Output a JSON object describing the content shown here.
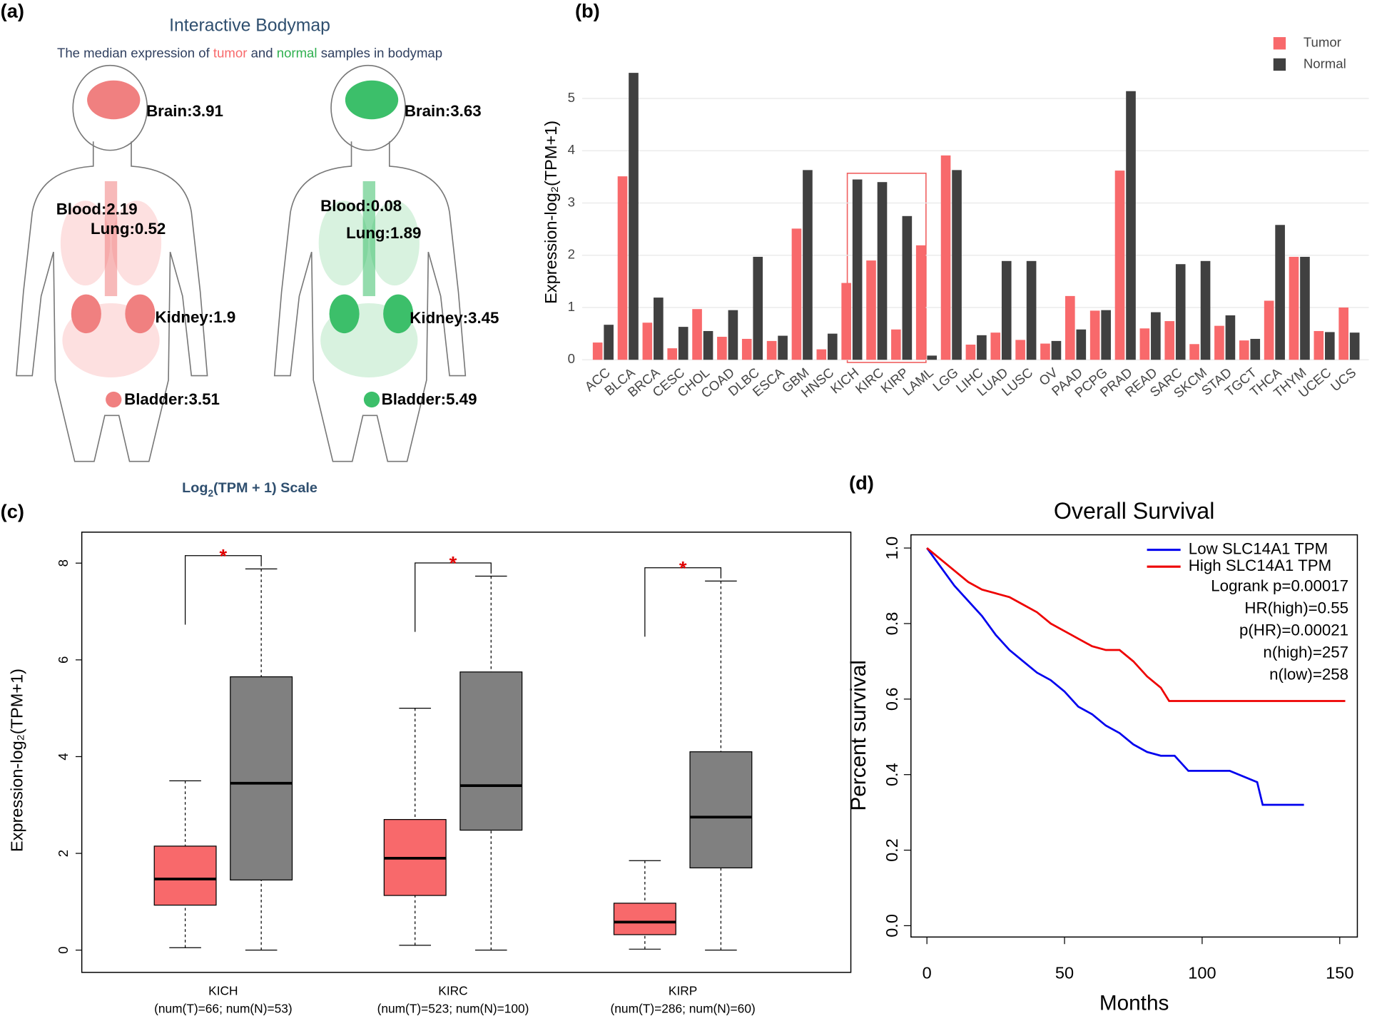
{
  "panel_labels": [
    "(a)",
    "(b)",
    "(c)",
    "(d)"
  ],
  "bodymap": {
    "title": "Interactive Bodymap",
    "subtitle": [
      "The median expression of ",
      "tumor",
      " and ",
      "normal",
      " samples in bodymap"
    ],
    "tumor_labels": [
      "Brain:3.91",
      "Blood:2.19",
      "Lung:0.52",
      "Kidney:1.9",
      "Bladder:3.51"
    ],
    "normal_labels": [
      "Brain:3.63",
      "Blood:0.08",
      "Lung:1.89",
      "Kidney:3.45",
      "Bladder:5.49"
    ],
    "scale_label": [
      "Log",
      "2",
      "(TPM + 1) Scale"
    ]
  },
  "chart_data": [
    {
      "type": "bar",
      "categories": [
        "ACC",
        "BLCA",
        "BRCA",
        "CESC",
        "CHOL",
        "COAD",
        "DLBC",
        "ESCA",
        "GBM",
        "HNSC",
        "KICH",
        "KIRC",
        "KIRP",
        "LAML",
        "LGG",
        "LIHC",
        "LUAD",
        "LUSC",
        "OV",
        "PAAD",
        "PCPG",
        "PRAD",
        "READ",
        "SARC",
        "SKCM",
        "STAD",
        "TGCT",
        "THCA",
        "THYM",
        "UCEC",
        "UCS"
      ],
      "series": [
        {
          "name": "Tumor",
          "color": "#f8696b",
          "values": [
            0.33,
            3.51,
            0.71,
            0.22,
            0.97,
            0.44,
            0.4,
            0.36,
            2.51,
            0.2,
            1.47,
            1.9,
            0.58,
            2.19,
            3.91,
            0.29,
            0.52,
            0.38,
            0.31,
            1.22,
            0.94,
            3.62,
            0.6,
            0.74,
            0.3,
            0.65,
            0.37,
            1.13,
            1.97,
            0.55,
            1.0
          ]
        },
        {
          "name": "Normal",
          "color": "#404040",
          "values": [
            0.67,
            5.49,
            1.19,
            0.63,
            0.55,
            0.95,
            1.97,
            0.46,
            3.63,
            0.5,
            3.45,
            3.4,
            2.75,
            0.08,
            3.63,
            0.47,
            1.89,
            1.89,
            0.36,
            0.58,
            0.95,
            5.14,
            0.91,
            1.83,
            1.89,
            0.85,
            0.4,
            2.58,
            1.97,
            0.53,
            0.52
          ]
        }
      ],
      "ylabel": "Expression-log₂(TPM+1)",
      "ylim": [
        0,
        5.7
      ],
      "yticks": [
        0,
        1,
        2,
        3,
        4,
        5
      ],
      "grid": true,
      "legend": "top-right"
    },
    {
      "type": "box",
      "categories": [
        "KICH",
        "KIRC",
        "KIRP"
      ],
      "category_notes": [
        "(num(T)=66; num(N)=53)",
        "(num(T)=523; num(N)=100)",
        "(num(T)=286; num(N)=60)"
      ],
      "series": [
        {
          "color": "#f8696b",
          "boxes": [
            {
              "low": 0.05,
              "q1": 0.93,
              "median": 1.47,
              "q3": 2.15,
              "high": 3.5
            },
            {
              "low": 0.1,
              "q1": 1.13,
              "median": 1.9,
              "q3": 2.7,
              "high": 5.0
            },
            {
              "low": 0.02,
              "q1": 0.32,
              "median": 0.58,
              "q3": 0.97,
              "high": 1.85
            }
          ]
        },
        {
          "color": "#808080",
          "boxes": [
            {
              "low": 0,
              "q1": 1.45,
              "median": 3.45,
              "q3": 5.65,
              "high": 7.88
            },
            {
              "low": 0,
              "q1": 2.48,
              "median": 3.4,
              "q3": 5.75,
              "high": 7.73
            },
            {
              "low": 0,
              "q1": 1.7,
              "median": 2.75,
              "q3": 4.1,
              "high": 7.63
            }
          ]
        }
      ],
      "annotations": [
        "*",
        "*",
        "*"
      ],
      "ylabel": "Expression-log₂(TPM+1)",
      "ylim": [
        -0.46,
        8.64
      ],
      "yticks": [
        0,
        2,
        4,
        6,
        8
      ]
    },
    {
      "type": "line",
      "title": "Overall Survival",
      "xlabel": "Months",
      "ylabel": "Percent survival",
      "series": [
        {
          "name": "Low SLC14A1 TPM",
          "color": "#0000ee",
          "x": [
            0,
            5,
            10,
            15,
            20,
            25,
            30,
            35,
            40,
            45,
            50,
            55,
            60,
            65,
            70,
            75,
            80,
            85,
            90,
            95,
            100,
            110,
            120,
            122,
            137
          ],
          "values": [
            1,
            0.95,
            0.9,
            0.86,
            0.82,
            0.77,
            0.73,
            0.7,
            0.67,
            0.65,
            0.62,
            0.58,
            0.56,
            0.53,
            0.51,
            0.48,
            0.46,
            0.45,
            0.45,
            0.41,
            0.41,
            0.41,
            0.38,
            0.32,
            0.32
          ]
        },
        {
          "name": "High SLC14A1 TPM",
          "color": "#ee0000",
          "x": [
            0,
            5,
            10,
            15,
            20,
            25,
            30,
            35,
            40,
            45,
            50,
            55,
            60,
            65,
            70,
            75,
            80,
            85,
            88,
            100,
            120,
            152
          ],
          "values": [
            1,
            0.97,
            0.94,
            0.91,
            0.89,
            0.88,
            0.87,
            0.85,
            0.83,
            0.8,
            0.78,
            0.76,
            0.74,
            0.73,
            0.73,
            0.7,
            0.66,
            0.63,
            0.595,
            0.595,
            0.595,
            0.595
          ]
        }
      ],
      "annotations": [
        "Logrank p=0.00017",
        "HR(high)=0.55",
        "p(HR)=0.00021",
        "n(high)=257",
        "n(low)=258"
      ],
      "xlim": [
        -5.8,
        156.4
      ],
      "xticks": [
        0,
        50,
        100,
        150
      ],
      "ylim": [
        -0.03,
        1.035
      ],
      "yticks": [
        {
          "value": 0,
          "label": "0.0"
        },
        0.2,
        0.4,
        0.6,
        0.8,
        {
          "value": 1,
          "label": "1.0"
        }
      ]
    }
  ]
}
